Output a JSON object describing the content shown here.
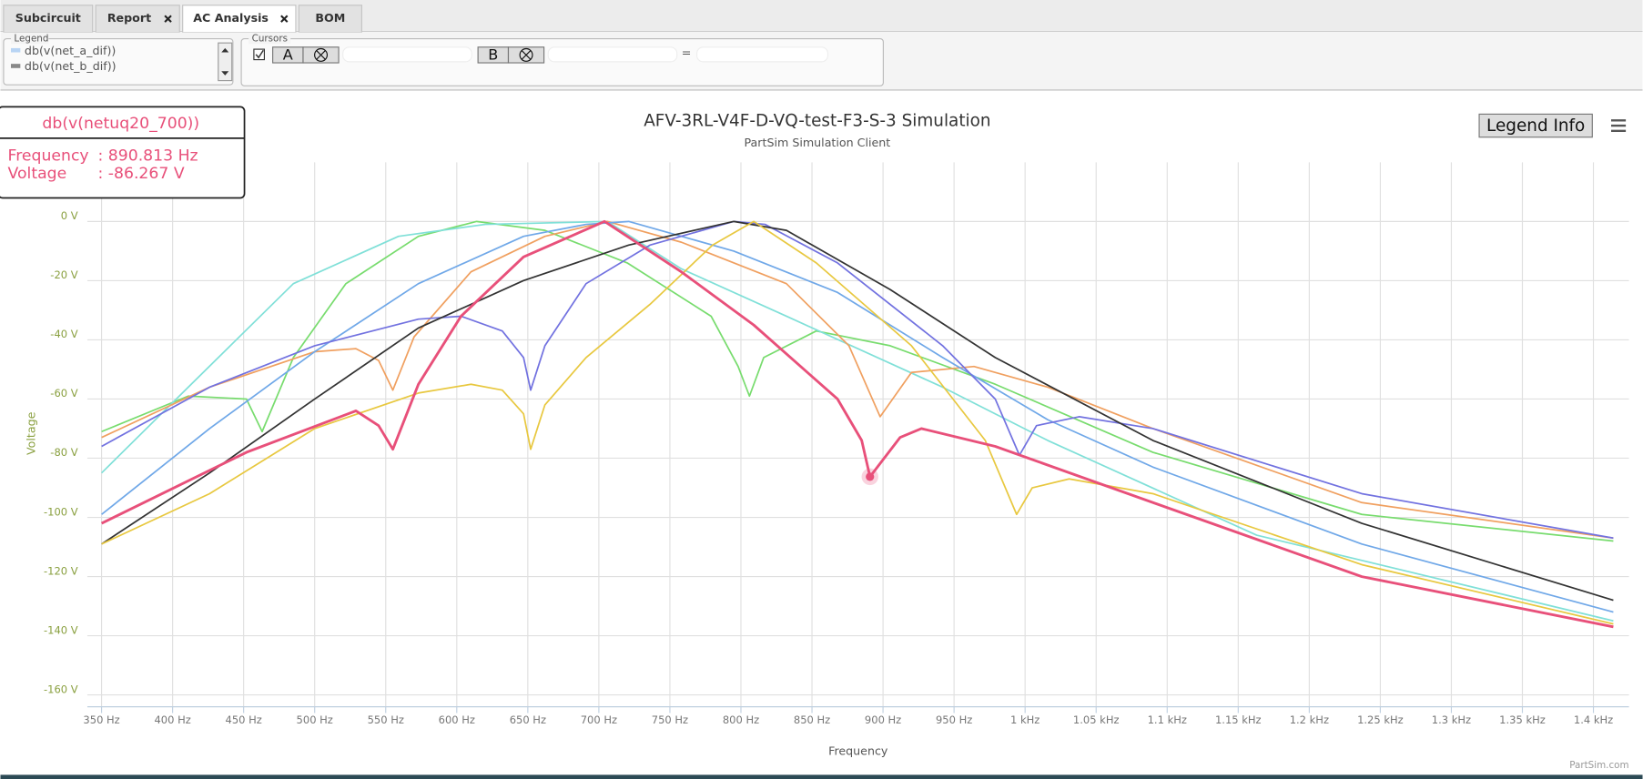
{
  "tabs": [
    "Subcircuit",
    "Report",
    "AC Analysis",
    "BOM"
  ],
  "legend_panel": {
    "title": "Legend",
    "entries": [
      "db(v(net_a_dif))",
      "db(v(net_b_dif))"
    ]
  },
  "cursors_panel": {
    "title": "Cursors",
    "a": "A",
    "b": "B",
    "equals": "="
  },
  "legend_info_button": "Legend Info",
  "credit": "PartSim.com",
  "chart_data": {
    "type": "line",
    "title": "AFV-3RL-V4F-D-VQ-test-F3-S-3 Simulation",
    "subtitle": "PartSim Simulation Client",
    "xlabel": "Frequency",
    "ylabel": "Voltage",
    "grid": true,
    "xlim": [
      340,
      1425
    ],
    "ylim": [
      -164,
      20
    ],
    "xticks": [
      {
        "value": 350,
        "label": "350 Hz"
      },
      {
        "value": 400,
        "label": "400 Hz"
      },
      {
        "value": 450,
        "label": "450 Hz"
      },
      {
        "value": 500,
        "label": "500 Hz"
      },
      {
        "value": 550,
        "label": "550 Hz"
      },
      {
        "value": 600,
        "label": "600 Hz"
      },
      {
        "value": 650,
        "label": "650 Hz"
      },
      {
        "value": 700,
        "label": "700 Hz"
      },
      {
        "value": 750,
        "label": "750 Hz"
      },
      {
        "value": 800,
        "label": "800 Hz"
      },
      {
        "value": 850,
        "label": "850 Hz"
      },
      {
        "value": 900,
        "label": "900 Hz"
      },
      {
        "value": 950,
        "label": "950 Hz"
      },
      {
        "value": 1000,
        "label": "1 kHz"
      },
      {
        "value": 1050,
        "label": "1.05 kHz"
      },
      {
        "value": 1100,
        "label": "1.1 kHz"
      },
      {
        "value": 1150,
        "label": "1.15 kHz"
      },
      {
        "value": 1200,
        "label": "1.2 kHz"
      },
      {
        "value": 1250,
        "label": "1.25 kHz"
      },
      {
        "value": 1300,
        "label": "1.3 kHz"
      },
      {
        "value": 1350,
        "label": "1.35 kHz"
      },
      {
        "value": 1400,
        "label": "1.4 kHz"
      }
    ],
    "yticks": [
      {
        "value": 0,
        "label": "0 V"
      },
      {
        "value": -20,
        "label": "-20 V"
      },
      {
        "value": -40,
        "label": "-40 V"
      },
      {
        "value": -60,
        "label": "-60 V"
      },
      {
        "value": -80,
        "label": "-80 V"
      },
      {
        "value": -100,
        "label": "-100 V"
      },
      {
        "value": -120,
        "label": "-120 V"
      },
      {
        "value": -140,
        "label": "-140 V"
      },
      {
        "value": -160,
        "label": "-160 V"
      }
    ],
    "series": [
      {
        "color": "#78dc6e",
        "x": [
          350,
          411,
          452,
          463,
          485,
          522,
          573,
          614,
          662,
          720,
          779,
          798,
          806,
          816,
          853,
          905,
          979,
          1090,
          1237,
          1414
        ],
        "values": [
          -71,
          -59,
          -60,
          -71,
          -46,
          -21,
          -5,
          0,
          -3,
          -14,
          -32,
          -49,
          -59,
          -46,
          -37,
          -42,
          -55,
          -78,
          -99,
          -108
        ]
      },
      {
        "color": "#80e0d8",
        "x": [
          350,
          411,
          485,
          559,
          620,
          706,
          758,
          832,
          942,
          1016,
          1163,
          1414
        ],
        "values": [
          -85,
          -56,
          -21,
          -5,
          -1,
          0,
          -16,
          -32,
          -56,
          -74,
          -106,
          -135
        ]
      },
      {
        "color": "#f0a060",
        "x": [
          350,
          426,
          500,
          529,
          545,
          555,
          570,
          610,
          662,
          706,
          758,
          832,
          876,
          898,
          920,
          964,
          1016,
          1090,
          1237,
          1414
        ],
        "values": [
          -73,
          -56,
          -44,
          -43,
          -47,
          -57,
          -39,
          -17,
          -5,
          0,
          -7,
          -21,
          -42,
          -66,
          -51,
          -49,
          -56,
          -70,
          -95,
          -107
        ]
      },
      {
        "color": "#70a8e8",
        "x": [
          350,
          426,
          500,
          573,
          647,
          691,
          721,
          795,
          868,
          942,
          1016,
          1090,
          1237,
          1414
        ],
        "values": [
          -99,
          -70,
          -44,
          -21,
          -5,
          -1,
          0,
          -10,
          -24,
          -46,
          -67,
          -83,
          -109,
          -132
        ]
      },
      {
        "color": "#7272e0",
        "x": [
          350,
          426,
          500,
          573,
          603,
          632,
          647,
          652,
          662,
          691,
          736,
          795,
          817,
          868,
          942,
          979,
          996,
          1008,
          1038,
          1090,
          1237,
          1414
        ],
        "values": [
          -76,
          -56,
          -42,
          -33,
          -32,
          -37,
          -46,
          -57,
          -42,
          -21,
          -8,
          0,
          -1,
          -14,
          -42,
          -60,
          -79,
          -69,
          -66,
          -70,
          -92,
          -107
        ]
      },
      {
        "color": "#333333",
        "x": [
          350,
          426,
          500,
          573,
          647,
          721,
          795,
          832,
          905,
          979,
          1090,
          1237,
          1414
        ],
        "values": [
          -109,
          -85,
          -60,
          -36,
          -20,
          -8,
          0,
          -3,
          -23,
          -46,
          -74,
          -102,
          -128
        ]
      },
      {
        "color": "#e8c840",
        "x": [
          350,
          426,
          500,
          573,
          610,
          632,
          647,
          652,
          662,
          691,
          736,
          780,
          809,
          853,
          920,
          972,
          994,
          1005,
          1031,
          1090,
          1237,
          1414
        ],
        "values": [
          -109,
          -92,
          -70,
          -58,
          -55,
          -57,
          -65,
          -77,
          -62,
          -46,
          -28,
          -8,
          0,
          -14,
          -42,
          -74,
          -99,
          -90,
          -87,
          -92,
          -116,
          -136
        ]
      },
      {
        "color": "#e8507a",
        "x": [
          350,
          452,
          529,
          545,
          555,
          573,
          603,
          647,
          704,
          758,
          809,
          868,
          885,
          890.813,
          912,
          927,
          979,
          1090,
          1237,
          1414
        ],
        "values": [
          -102,
          -78,
          -64,
          -69,
          -77,
          -55,
          -32,
          -12,
          0,
          -17,
          -35,
          -60,
          -74,
          -86.267,
          -73,
          -70,
          -76,
          -95,
          -120,
          -137
        ]
      }
    ],
    "tooltip": {
      "series_name": "db(v(netuq20_700))",
      "color": "#e8507a",
      "x": 890.813,
      "y": -86.267,
      "rows": [
        {
          "label": "Frequency",
          "text": ": 890.813 Hz"
        },
        {
          "label": "Voltage",
          "text": ": -86.267 V"
        }
      ]
    }
  }
}
